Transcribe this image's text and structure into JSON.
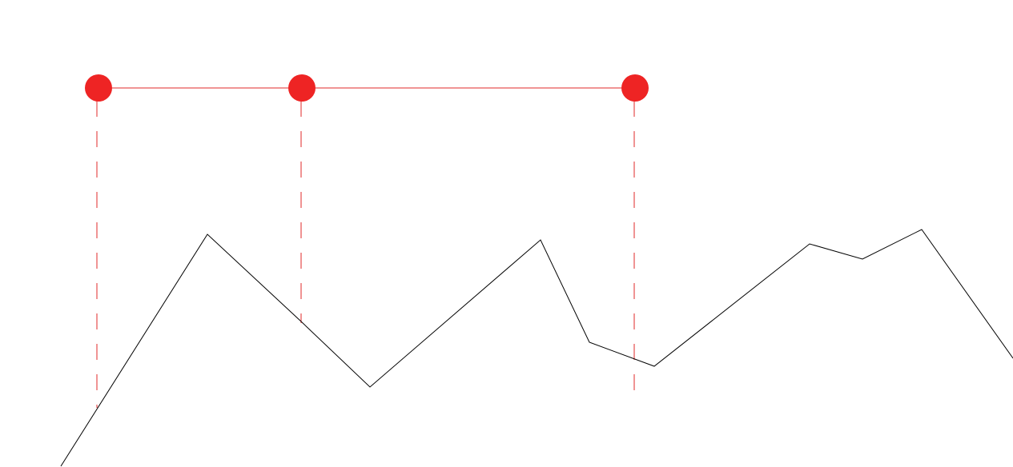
{
  "colors": {
    "background": "#ffffff",
    "marker": "#ee2424",
    "guide": "#e02a2a",
    "connector": "#e02a2a",
    "profile_line": "#000000"
  },
  "elements": {
    "markers": {
      "count": 3,
      "shape": "circle",
      "connected": true
    },
    "guides": {
      "style": "dashed",
      "direction": "vertical",
      "count": 3
    },
    "profile_line": {
      "style": "solid",
      "shape": "zig-zag polyline"
    }
  }
}
